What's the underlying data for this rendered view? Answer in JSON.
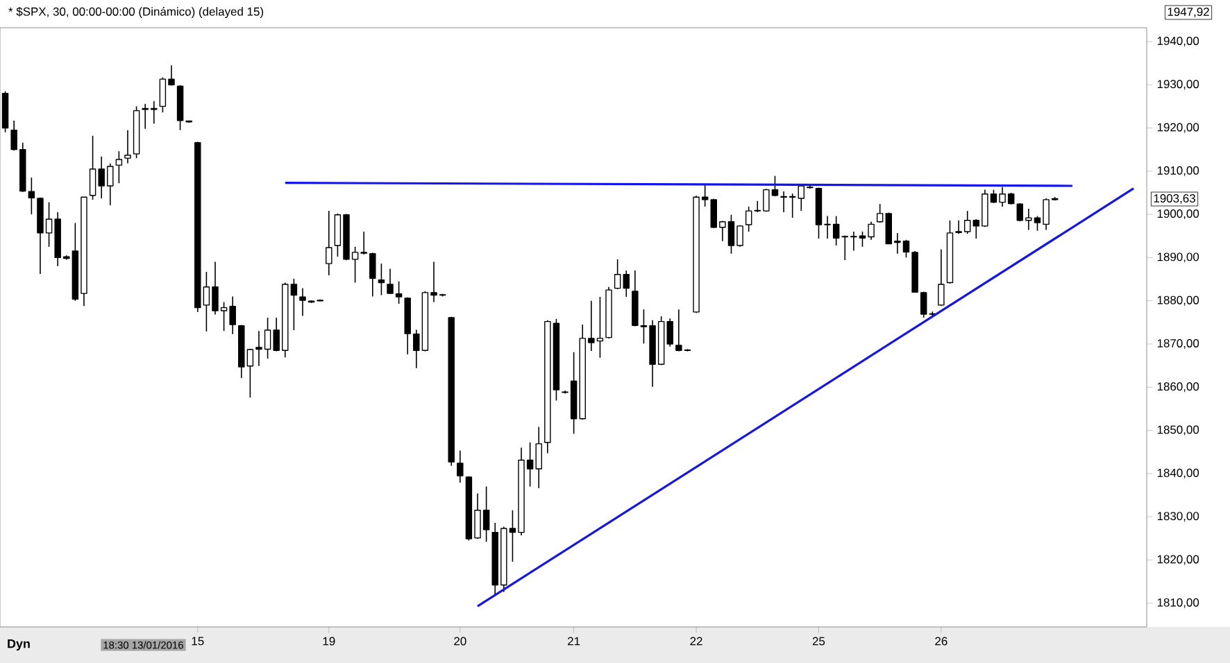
{
  "chart_data": {
    "type": "candlestick",
    "title": "* $SPX, 30, 00:00-00:00 (Dinámico) (delayed 15)",
    "categories": [
      null,
      null,
      null,
      null,
      null,
      null,
      null,
      null,
      null,
      null,
      null,
      null,
      null,
      null,
      null,
      null,
      null,
      null,
      null,
      null,
      null,
      null,
      "15",
      null,
      null,
      null,
      null,
      null,
      null,
      null,
      null,
      null,
      null,
      null,
      null,
      null,
      null,
      "19",
      null,
      null,
      null,
      null,
      null,
      null,
      null,
      null,
      null,
      null,
      null,
      null,
      null,
      null,
      "20",
      null,
      null,
      null,
      null,
      null,
      null,
      null,
      null,
      null,
      null,
      null,
      null,
      "21",
      null,
      null,
      null,
      null,
      null,
      null,
      null,
      null,
      null,
      null,
      null,
      null,
      null,
      "22",
      null,
      null,
      null,
      null,
      null,
      null,
      null,
      null,
      null,
      null,
      null,
      null,
      null,
      "25",
      null,
      null,
      null,
      null,
      null,
      null,
      null,
      null,
      null,
      null,
      null,
      null,
      null,
      "26",
      null,
      null,
      null,
      null,
      null,
      null,
      null,
      null,
      null,
      null,
      null,
      null,
      null,
      null,
      null,
      null,
      null,
      null,
      null,
      null,
      null,
      null
    ],
    "ohlc": [
      [
        1928,
        1928.5,
        1919,
        1920
      ],
      [
        1919.5,
        1921.7,
        1914.8,
        1915
      ],
      [
        1915,
        1916.6,
        1905.2,
        1905.4
      ],
      [
        1905.3,
        1908.5,
        1900,
        1903.8
      ],
      [
        1903.7,
        1903.9,
        1886.2,
        1895.7
      ],
      [
        1895.7,
        1902.8,
        1892.5,
        1898.9
      ],
      [
        1898.9,
        1900.5,
        1888,
        1890
      ],
      [
        1890.2,
        1890.5,
        1889.5,
        1889.8
      ],
      [
        1891.5,
        1898,
        1880,
        1880.4
      ],
      [
        1881.7,
        1904,
        1878.8,
        1904
      ],
      [
        1904.4,
        1918.2,
        1903.4,
        1910.5
      ],
      [
        1910.5,
        1913.4,
        1903.7,
        1906.6
      ],
      [
        1906.6,
        1911.8,
        1902.1,
        1911.1
      ],
      [
        1911.4,
        1914.6,
        1907.2,
        1912.7
      ],
      [
        1913,
        1919.5,
        1911.8,
        1913.7
      ],
      [
        1914,
        1925,
        1913,
        1924
      ],
      [
        1924.3,
        1925.6,
        1919.8,
        1924.5
      ],
      [
        1924.5,
        1926.2,
        1921,
        1924.3
      ],
      [
        1925,
        1931.7,
        1923.6,
        1931.3
      ],
      [
        1931.3,
        1934.5,
        1929.8,
        1930
      ],
      [
        1929.7,
        1929.9,
        1919.5,
        1921.7
      ],
      [
        1921.6,
        1921.7,
        1921.2,
        1921.4
      ],
      [
        1916.6,
        1916.8,
        1877.4,
        1878.4
      ],
      [
        1879,
        1886.7,
        1872.9,
        1883.2
      ],
      [
        1883.2,
        1889,
        1876.8,
        1877.7
      ],
      [
        1877.7,
        1879.7,
        1873,
        1878.4
      ],
      [
        1878.7,
        1881,
        1872.3,
        1874.5
      ],
      [
        1874.2,
        1874.4,
        1862.1,
        1864.7
      ],
      [
        1864.9,
        1868.9,
        1857.6,
        1868.7
      ],
      [
        1869.2,
        1873,
        1864.9,
        1868.8
      ],
      [
        1868.8,
        1876.1,
        1866.6,
        1873.2
      ],
      [
        1873.2,
        1876.1,
        1868.3,
        1868.5
      ],
      [
        1868.5,
        1884.2,
        1866.9,
        1883.8
      ],
      [
        1883.8,
        1885.1,
        1873.2,
        1881.3
      ],
      [
        1880.9,
        1882.9,
        1876.5,
        1880.1
      ],
      [
        1879.9,
        1880.1,
        1879.5,
        1879.7
      ],
      [
        1880,
        1880.3,
        1879.9,
        1880.1
      ],
      [
        1888.6,
        1900.8,
        1885.9,
        1892.3
      ],
      [
        1892.8,
        1900.2,
        1890.2,
        1899.9
      ],
      [
        1899.9,
        1900.1,
        1889.4,
        1889.6
      ],
      [
        1889.6,
        1892.5,
        1884.2,
        1891.2
      ],
      [
        1891.2,
        1896,
        1890.7,
        1891
      ],
      [
        1890.9,
        1891.1,
        1881,
        1885.2
      ],
      [
        1884.8,
        1888.6,
        1881.3,
        1884.2
      ],
      [
        1883.8,
        1887.4,
        1881.6,
        1881.7
      ],
      [
        1881.6,
        1884.5,
        1879.3,
        1880.9
      ],
      [
        1880.6,
        1880.8,
        1867.6,
        1872.4
      ],
      [
        1872.3,
        1873.3,
        1864.4,
        1868.5
      ],
      [
        1868.5,
        1882.2,
        1868.3,
        1881.9
      ],
      [
        1881.9,
        1889,
        1879.7,
        1881.3
      ],
      [
        1881.4,
        1881.6,
        1881,
        1881.3
      ],
      [
        1876.1,
        1876.3,
        1841.8,
        1842.7
      ],
      [
        1842.4,
        1845.3,
        1837.9,
        1839.5
      ],
      [
        1839.2,
        1839.4,
        1824.5,
        1824.9
      ],
      [
        1825.1,
        1835.4,
        1824.9,
        1831.5
      ],
      [
        1831.5,
        1837,
        1824.2,
        1827
      ],
      [
        1826.4,
        1828.6,
        1811.9,
        1814.2
      ],
      [
        1814.2,
        1827.7,
        1812.6,
        1827.3
      ],
      [
        1827.3,
        1831.5,
        1819.6,
        1826.4
      ],
      [
        1826.4,
        1846,
        1825.7,
        1843.1
      ],
      [
        1843.1,
        1847.2,
        1837,
        1841.1
      ],
      [
        1841.1,
        1850.8,
        1836.6,
        1846.9
      ],
      [
        1847.2,
        1875.5,
        1844.7,
        1875.2
      ],
      [
        1874.8,
        1875.8,
        1856.9,
        1859.4
      ],
      [
        1858.9,
        1859.2,
        1858.5,
        1858.8
      ],
      [
        1861.4,
        1868.1,
        1849.2,
        1852.7
      ],
      [
        1852.7,
        1874.5,
        1852.5,
        1871.3
      ],
      [
        1871.3,
        1880,
        1868.4,
        1870.3
      ],
      [
        1870.7,
        1880.9,
        1866.8,
        1871.3
      ],
      [
        1871.5,
        1883.2,
        1871.3,
        1882.5
      ],
      [
        1882.9,
        1889.6,
        1882.7,
        1886.1
      ],
      [
        1886.1,
        1887,
        1880.9,
        1882.9
      ],
      [
        1882.2,
        1887,
        1874.1,
        1874.3
      ],
      [
        1874.2,
        1878,
        1870.1,
        1874
      ],
      [
        1874.2,
        1875.5,
        1860.1,
        1865.3
      ],
      [
        1865.3,
        1876.4,
        1865.1,
        1875.2
      ],
      [
        1875.2,
        1875.9,
        1869.4,
        1870
      ],
      [
        1869.7,
        1878,
        1868.3,
        1868.5
      ],
      [
        1868.6,
        1868.8,
        1868.3,
        1868.5
      ],
      [
        1877.4,
        1904.3,
        1877.2,
        1904
      ],
      [
        1904,
        1906.9,
        1901.8,
        1903.4
      ],
      [
        1903.4,
        1903.6,
        1896.8,
        1897
      ],
      [
        1897,
        1898.5,
        1893.8,
        1898.3
      ],
      [
        1898.3,
        1899.9,
        1890.9,
        1892.8
      ],
      [
        1892.8,
        1897.5,
        1892.5,
        1897.3
      ],
      [
        1897.6,
        1901.8,
        1896,
        1900.8
      ],
      [
        1900.9,
        1903.1,
        1900.5,
        1900.8
      ],
      [
        1900.8,
        1905.9,
        1900.6,
        1905.7
      ],
      [
        1905.7,
        1908.9,
        1904.2,
        1904.4
      ],
      [
        1904.1,
        1905.3,
        1900.5,
        1904
      ],
      [
        1904.1,
        1904.8,
        1899.2,
        1904
      ],
      [
        1903.7,
        1906.9,
        1900.8,
        1906.6
      ],
      [
        1906.2,
        1906.6,
        1906,
        1906.3
      ],
      [
        1906,
        1906.2,
        1894.4,
        1897.6
      ],
      [
        1897.6,
        1899.6,
        1894.4,
        1897.7
      ],
      [
        1897.7,
        1899.6,
        1892.8,
        1894.5
      ],
      [
        1894.9,
        1895.1,
        1889.4,
        1894.8
      ],
      [
        1894.9,
        1896,
        1891.6,
        1894.8
      ],
      [
        1895,
        1896,
        1892.5,
        1894.5
      ],
      [
        1894.8,
        1898.3,
        1894.1,
        1897.7
      ],
      [
        1898.3,
        1902.4,
        1898.1,
        1900.2
      ],
      [
        1900.2,
        1900.4,
        1893.2,
        1893.2
      ],
      [
        1893.8,
        1895.7,
        1890.9,
        1893.5
      ],
      [
        1893.8,
        1894.1,
        1890,
        1891.3
      ],
      [
        1891.2,
        1891.5,
        1882,
        1882
      ],
      [
        1881.9,
        1882.1,
        1876.1,
        1876.9
      ],
      [
        1877,
        1877.5,
        1876.5,
        1876.9
      ],
      [
        1879,
        1891.9,
        1878.8,
        1883.8
      ],
      [
        1884.2,
        1898.6,
        1884,
        1895.7
      ],
      [
        1896,
        1898.6,
        1895.5,
        1895.8
      ],
      [
        1896,
        1900.8,
        1895.5,
        1898.6
      ],
      [
        1898.6,
        1898.9,
        1894.4,
        1897.3
      ],
      [
        1897.3,
        1905.7,
        1897.1,
        1904.7
      ],
      [
        1904.7,
        1905.7,
        1902.6,
        1902.8
      ],
      [
        1902.8,
        1906.3,
        1901.8,
        1904.7
      ],
      [
        1904.7,
        1905,
        1902.3,
        1902.5
      ],
      [
        1902.4,
        1902.6,
        1898.4,
        1898.6
      ],
      [
        1898.6,
        1901.3,
        1896.4,
        1899.2
      ],
      [
        1899.2,
        1899.6,
        1896.2,
        1898.1
      ],
      [
        1897.7,
        1903.7,
        1896.4,
        1903.4
      ],
      [
        1903.4,
        1904,
        1903.2,
        1903.63
      ],
      null,
      null,
      null,
      null,
      null,
      null,
      null,
      null,
      null
    ],
    "series": [
      {
        "type": "line",
        "color": "#1414f0",
        "values": [
          null,
          null,
          null,
          null,
          null,
          null,
          null,
          null,
          null,
          null,
          null,
          null,
          null,
          null,
          null,
          null,
          null,
          null,
          null,
          null,
          null,
          null,
          null,
          null,
          null,
          null,
          null,
          null,
          null,
          null,
          null,
          null,
          1907.3,
          null,
          null,
          null,
          null,
          null,
          null,
          null,
          null,
          null,
          null,
          null,
          null,
          null,
          null,
          null,
          null,
          null,
          null,
          null,
          null,
          null,
          null,
          null,
          null,
          null,
          null,
          null,
          null,
          null,
          null,
          null,
          null,
          null,
          null,
          null,
          null,
          null,
          null,
          null,
          null,
          null,
          null,
          null,
          null,
          null,
          null,
          null,
          null,
          null,
          null,
          null,
          null,
          null,
          null,
          null,
          null,
          null,
          null,
          null,
          null,
          null,
          null,
          null,
          null,
          null,
          null,
          null,
          null,
          null,
          null,
          null,
          null,
          null,
          null,
          null,
          null,
          null,
          null,
          null,
          null,
          null,
          null,
          null,
          null,
          null,
          null,
          null,
          null,
          null,
          1906.6,
          null,
          null,
          null,
          null,
          null,
          null,
          null
        ]
      },
      {
        "type": "line",
        "color": "#1414f0",
        "values": [
          null,
          null,
          null,
          null,
          null,
          null,
          null,
          null,
          null,
          null,
          null,
          null,
          null,
          null,
          null,
          null,
          null,
          null,
          null,
          null,
          null,
          null,
          null,
          null,
          null,
          null,
          null,
          null,
          null,
          null,
          null,
          null,
          null,
          null,
          null,
          null,
          null,
          null,
          null,
          null,
          null,
          null,
          null,
          null,
          null,
          null,
          null,
          null,
          null,
          null,
          null,
          null,
          null,
          null,
          1809.3,
          null,
          null,
          null,
          null,
          null,
          null,
          null,
          null,
          null,
          null,
          null,
          null,
          null,
          null,
          null,
          null,
          null,
          null,
          null,
          null,
          null,
          null,
          null,
          null,
          null,
          null,
          null,
          null,
          null,
          null,
          null,
          null,
          null,
          null,
          null,
          null,
          null,
          null,
          null,
          null,
          null,
          null,
          null,
          null,
          null,
          null,
          null,
          null,
          null,
          null,
          null,
          null,
          null,
          null,
          null,
          null,
          null,
          null,
          null,
          null,
          null,
          null,
          null,
          null,
          null,
          null,
          null,
          null,
          null,
          null,
          null,
          null,
          null,
          null,
          1906
        ]
      }
    ],
    "ylim": [
      1804.5,
      1943.2
    ],
    "yticks": [
      {
        "value": 1810,
        "label": "1810,00"
      },
      {
        "value": 1820,
        "label": "1820,00"
      },
      {
        "value": 1830,
        "label": "1830,00"
      },
      {
        "value": 1840,
        "label": "1840,00"
      },
      {
        "value": 1850,
        "label": "1850,00"
      },
      {
        "value": 1860,
        "label": "1860,00"
      },
      {
        "value": 1870,
        "label": "1870,00"
      },
      {
        "value": 1880,
        "label": "1880,00"
      },
      {
        "value": 1890,
        "label": "1890,00"
      },
      {
        "value": 1900,
        "label": "1900,00"
      },
      {
        "value": 1910,
        "label": "1910,00"
      },
      {
        "value": 1920,
        "label": "1920,00"
      },
      {
        "value": 1930,
        "label": "1930,00"
      },
      {
        "value": 1940,
        "label": "1940,00"
      }
    ],
    "annotations": [
      "1947,92",
      "1903,63",
      "Dyn",
      "18:30 13/01/2016"
    ]
  }
}
